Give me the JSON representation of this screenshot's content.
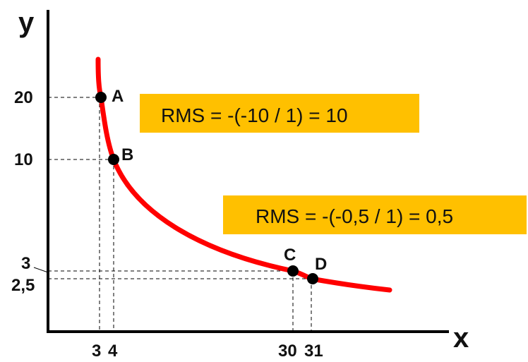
{
  "chart_data": {
    "type": "line",
    "xlabel": "x",
    "ylabel": "y",
    "x_ticks": [
      "3",
      "4",
      "30",
      "31"
    ],
    "y_ticks": [
      "20",
      "10",
      "3",
      "2,5"
    ],
    "points": [
      {
        "label": "A",
        "x": 3,
        "y": 20
      },
      {
        "label": "B",
        "x": 4,
        "y": 10
      },
      {
        "label": "C",
        "x": 30,
        "y": 3
      },
      {
        "label": "D",
        "x": 31,
        "y": 2.5
      }
    ],
    "annotations": [
      "RMS = -(-10 / 1) = 10",
      "RMS = -(-0,5 / 1) = 0,5"
    ],
    "colors": {
      "curve": "#ff0000",
      "box": "#ffc000",
      "point": "#000000"
    }
  }
}
